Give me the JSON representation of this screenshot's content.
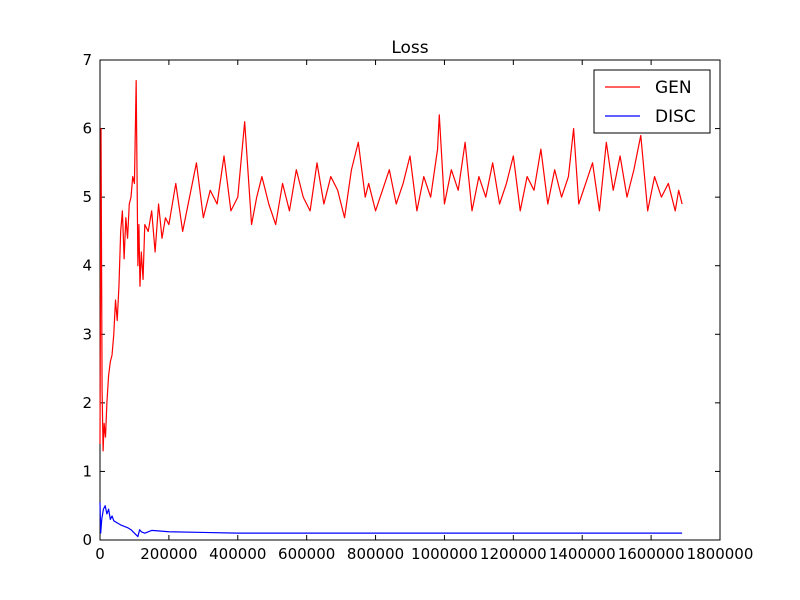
{
  "chart_data": {
    "type": "line",
    "title": "Loss",
    "xlabel": "",
    "ylabel": "",
    "xlim": [
      0,
      1800000
    ],
    "ylim": [
      0,
      7
    ],
    "x_ticks": [
      0,
      200000,
      400000,
      600000,
      800000,
      1000000,
      1200000,
      1400000,
      1600000,
      1800000
    ],
    "x_tick_labels": [
      "0",
      "200000",
      "400000",
      "600000",
      "800000",
      "1000000",
      "1200000",
      "1400000",
      "1600000",
      "1800000"
    ],
    "y_ticks": [
      0,
      1,
      2,
      3,
      4,
      5,
      6,
      7
    ],
    "y_tick_labels": [
      "0",
      "1",
      "2",
      "3",
      "4",
      "5",
      "6",
      "7"
    ],
    "grid": false,
    "legend_position": "top-right",
    "series": [
      {
        "name": "GEN",
        "color": "#ff0000",
        "x": [
          0,
          3000,
          6000,
          9000,
          12000,
          16000,
          20000,
          25000,
          30000,
          35000,
          40000,
          45000,
          50000,
          55000,
          60000,
          65000,
          70000,
          75000,
          80000,
          85000,
          90000,
          95000,
          100000,
          105000,
          110000,
          113000,
          116000,
          120000,
          125000,
          130000,
          140000,
          150000,
          160000,
          170000,
          180000,
          190000,
          200000,
          220000,
          240000,
          260000,
          280000,
          300000,
          320000,
          340000,
          360000,
          380000,
          400000,
          420000,
          440000,
          455000,
          470000,
          490000,
          510000,
          530000,
          550000,
          570000,
          590000,
          610000,
          630000,
          650000,
          670000,
          690000,
          710000,
          730000,
          750000,
          770000,
          780000,
          800000,
          820000,
          840000,
          860000,
          880000,
          900000,
          920000,
          940000,
          960000,
          980000,
          985000,
          1000000,
          1020000,
          1040000,
          1060000,
          1080000,
          1100000,
          1120000,
          1140000,
          1160000,
          1180000,
          1200000,
          1220000,
          1240000,
          1260000,
          1280000,
          1300000,
          1320000,
          1340000,
          1360000,
          1375000,
          1390000,
          1410000,
          1430000,
          1450000,
          1470000,
          1490000,
          1510000,
          1530000,
          1550000,
          1570000,
          1590000,
          1610000,
          1630000,
          1650000,
          1670000,
          1680000,
          1690000
        ],
        "values": [
          1.4,
          6.0,
          2.2,
          1.3,
          1.7,
          1.5,
          2.0,
          2.4,
          2.6,
          2.7,
          3.0,
          3.5,
          3.2,
          3.7,
          4.5,
          4.8,
          4.1,
          4.7,
          4.4,
          4.9,
          5.0,
          5.3,
          5.2,
          6.7,
          4.0,
          4.6,
          3.7,
          4.2,
          3.8,
          4.6,
          4.5,
          4.8,
          4.2,
          4.9,
          4.4,
          4.7,
          4.6,
          5.2,
          4.5,
          5.0,
          5.5,
          4.7,
          5.1,
          4.9,
          5.6,
          4.8,
          5.0,
          6.1,
          4.6,
          5.0,
          5.3,
          4.9,
          4.6,
          5.2,
          4.8,
          5.4,
          5.0,
          4.8,
          5.5,
          4.9,
          5.3,
          5.1,
          4.7,
          5.4,
          5.8,
          5.0,
          5.2,
          4.8,
          5.1,
          5.4,
          4.9,
          5.2,
          5.6,
          4.8,
          5.3,
          5.0,
          5.7,
          6.2,
          4.9,
          5.4,
          5.1,
          5.8,
          4.8,
          5.3,
          5.0,
          5.5,
          4.9,
          5.2,
          5.6,
          4.8,
          5.3,
          5.1,
          5.7,
          4.9,
          5.4,
          5.0,
          5.3,
          6.0,
          4.9,
          5.2,
          5.5,
          4.8,
          5.8,
          5.1,
          5.6,
          5.0,
          5.4,
          5.9,
          4.8,
          5.3,
          5.0,
          5.2,
          4.8,
          5.1,
          4.9
        ]
      },
      {
        "name": "DISC",
        "color": "#0000ff",
        "x": [
          0,
          2000,
          5000,
          10000,
          15000,
          20000,
          25000,
          30000,
          35000,
          40000,
          50000,
          60000,
          70000,
          80000,
          90000,
          100000,
          110000,
          115000,
          120000,
          130000,
          150000,
          200000,
          300000,
          400000,
          500000,
          600000,
          800000,
          1000000,
          1200000,
          1400000,
          1600000,
          1690000
        ],
        "values": [
          0.55,
          0.1,
          0.3,
          0.45,
          0.5,
          0.38,
          0.45,
          0.3,
          0.35,
          0.28,
          0.25,
          0.22,
          0.2,
          0.18,
          0.15,
          0.1,
          0.05,
          0.15,
          0.12,
          0.1,
          0.14,
          0.12,
          0.11,
          0.1,
          0.1,
          0.1,
          0.1,
          0.1,
          0.1,
          0.1,
          0.1,
          0.1
        ]
      }
    ]
  }
}
